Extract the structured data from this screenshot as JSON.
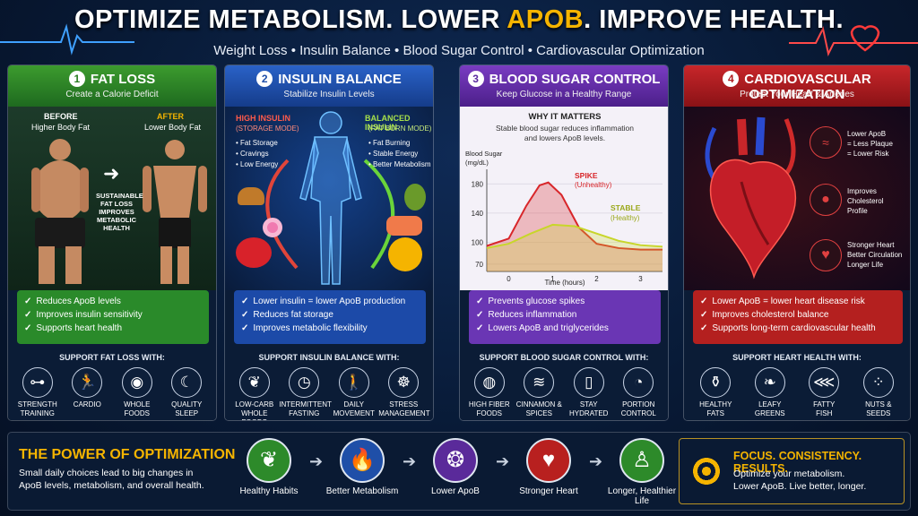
{
  "header": {
    "title_a": "OPTIMIZE METABOLISM. LOWER ",
    "title_hl": "APOB",
    "title_b": ". IMPROVE HEALTH.",
    "subtitle": "Weight Loss • Insulin Balance • Blood Sugar Control • Cardiovascular Optimization"
  },
  "colors": {
    "gold": "#f5b400",
    "green": "#2a8a2a",
    "blue": "#1c4aa8",
    "purple": "#6a36b4",
    "red": "#b4201f"
  },
  "panel1": {
    "num": "1",
    "title": "FAT LOSS",
    "subtitle": "Create a Calorie Deficit",
    "before": "BEFORE",
    "before_sub": "Higher Body Fat",
    "after": "AFTER",
    "after_sub": "Lower Body Fat",
    "middle": [
      "SUSTAINABLE",
      "FAT LOSS",
      "IMPROVES",
      "METABOLIC",
      "HEALTH"
    ],
    "checks": [
      "Reduces ApoB levels",
      "Improves insulin sensitivity",
      "Supports heart health"
    ],
    "support_title": "SUPPORT FAT LOSS WITH:",
    "icons": [
      {
        "name": "dumbbell-icon",
        "glyph": "⊶",
        "label": [
          "STRENGTH",
          "TRAINING"
        ]
      },
      {
        "name": "running-icon",
        "glyph": "🏃",
        "label": [
          "CARDIO",
          ""
        ]
      },
      {
        "name": "plate-icon",
        "glyph": "◉",
        "label": [
          "WHOLE",
          "FOODS"
        ]
      },
      {
        "name": "moon-icon",
        "glyph": "☾",
        "label": [
          "QUALITY",
          "SLEEP"
        ]
      }
    ]
  },
  "panel2": {
    "num": "2",
    "title": "INSULIN BALANCE",
    "subtitle": "Stabilize Insulin Levels",
    "high": "HIGH INSULIN",
    "high_mode": "(STORAGE MODE)",
    "high_items": [
      "• Fat Storage",
      "• Cravings",
      "• Low Energy"
    ],
    "bal": "BALANCED INSULIN",
    "bal_mode": "(FAT BURN MODE)",
    "bal_items": [
      "• Fat Burning",
      "• Stable Energy",
      "• Better Metabolism"
    ],
    "checks": [
      "Lower insulin = lower ApoB production",
      "Reduces fat storage",
      "Improves metabolic flexibility"
    ],
    "support_title": "SUPPORT INSULIN BALANCE WITH:",
    "icons": [
      {
        "name": "leaf-icon",
        "glyph": "❦",
        "label": [
          "LOW-CARB",
          "WHOLE FOODS"
        ]
      },
      {
        "name": "clock-icon",
        "glyph": "◷",
        "label": [
          "INTERMITTENT",
          "FASTING"
        ]
      },
      {
        "name": "walking-icon",
        "glyph": "🚶",
        "label": [
          "DAILY",
          "MOVEMENT"
        ]
      },
      {
        "name": "meditation-icon",
        "glyph": "☸",
        "label": [
          "STRESS",
          "MANAGEMENT"
        ]
      }
    ]
  },
  "panel3": {
    "num": "3",
    "title": "BLOOD SUGAR CONTROL",
    "subtitle": "Keep Glucose in a Healthy Range",
    "why": "WHY IT MATTERS",
    "why_text": [
      "Stable blood sugar reduces inflammation",
      "and lowers ApoB levels."
    ],
    "ylabel": [
      "Blood Sugar",
      "(mg/dL)"
    ],
    "spike": "SPIKE",
    "spike_sub": "(Unhealthy)",
    "stable": "STABLE",
    "stable_sub": "(Healthy)",
    "xlabel": "Time (hours)",
    "checks": [
      "Prevents glucose spikes",
      "Reduces inflammation",
      "Lowers ApoB and triglycerides"
    ],
    "support_title": "SUPPORT BLOOD SUGAR CONTROL WITH:",
    "icons": [
      {
        "name": "bowl-icon",
        "glyph": "◍",
        "label": [
          "HIGH FIBER",
          "FOODS"
        ]
      },
      {
        "name": "cinnamon-icon",
        "glyph": "≋",
        "label": [
          "CINNAMON &",
          "SPICES"
        ]
      },
      {
        "name": "water-glass-icon",
        "glyph": "▯",
        "label": [
          "STAY",
          "HYDRATED"
        ]
      },
      {
        "name": "portion-icon",
        "glyph": "◔",
        "label": [
          "PORTION",
          "CONTROL"
        ]
      }
    ]
  },
  "chart_data": {
    "type": "line",
    "title": "",
    "xlabel": "Time (hours)",
    "ylabel": "Blood Sugar (mg/dL)",
    "xlim": [
      -0.5,
      3.5
    ],
    "ylim": [
      60,
      200
    ],
    "x_ticks": [
      0,
      1,
      2,
      3
    ],
    "y_ticks": [
      70,
      100,
      140,
      180
    ],
    "series": [
      {
        "name": "SPIKE",
        "color": "#d8262a",
        "x": [
          -0.5,
          0,
          0.4,
          0.7,
          0.9,
          1.2,
          1.6,
          2.0,
          2.5,
          3.0,
          3.5
        ],
        "y": [
          95,
          105,
          150,
          178,
          182,
          165,
          120,
          98,
          92,
          90,
          90
        ]
      },
      {
        "name": "STABLE",
        "color": "#c8d62a",
        "x": [
          -0.5,
          0,
          0.5,
          1.0,
          1.5,
          2.0,
          2.5,
          3.0,
          3.5
        ],
        "y": [
          92,
          98,
          112,
          124,
          122,
          112,
          102,
          96,
          94
        ]
      }
    ]
  },
  "panel4": {
    "num": "4",
    "title": "CARDIOVASCULAR OPTIMIZATION",
    "subtitle": "Protect Your Heart & Arteries",
    "side": [
      [
        "Lower ApoB",
        "= Less Plaque",
        "= Lower Risk"
      ],
      [
        "Improves",
        "Cholesterol",
        "Profile"
      ],
      [
        "Stronger Heart",
        "Better Circulation",
        "Longer Life"
      ]
    ],
    "checks": [
      "Lower ApoB = lower heart disease risk",
      "Improves cholesterol balance",
      "Supports long-term cardiovascular health"
    ],
    "support_title": "SUPPORT HEART HEALTH WITH:",
    "icons": [
      {
        "name": "olive-oil-icon",
        "glyph": "⚱",
        "label": [
          "HEALTHY",
          "FATS"
        ]
      },
      {
        "name": "greens-icon",
        "glyph": "❧",
        "label": [
          "LEAFY",
          "GREENS"
        ]
      },
      {
        "name": "fish-icon",
        "glyph": "⋘",
        "label": [
          "FATTY",
          "FISH"
        ]
      },
      {
        "name": "nuts-icon",
        "glyph": "⁘",
        "label": [
          "NUTS &",
          "SEEDS"
        ]
      }
    ]
  },
  "bottom": {
    "title": "THE POWER OF OPTIMIZATION",
    "text": [
      "Small daily choices lead to big changes in",
      "ApoB levels, metabolism, and overall health."
    ],
    "steps": [
      {
        "name": "healthy-habits",
        "icon": "leaf-icon",
        "glyph": "❦",
        "color": "#2d8a2a",
        "label": "Healthy Habits"
      },
      {
        "name": "better-metabolism",
        "icon": "flame-icon",
        "glyph": "🔥",
        "color": "#1f4fa8",
        "label": "Better Metabolism"
      },
      {
        "name": "lower-apob",
        "icon": "molecule-icon",
        "glyph": "❂",
        "color": "#5a2a9a",
        "label": "Lower ApoB"
      },
      {
        "name": "stronger-heart",
        "icon": "heart-icon",
        "glyph": "♥",
        "color": "#b8201f",
        "label": "Stronger Heart"
      },
      {
        "name": "longer-life",
        "icon": "person-icon",
        "glyph": "♙",
        "color": "#2d8a2a",
        "label": "Longer, Healthier Life"
      }
    ],
    "focus_title": "FOCUS. CONSISTENCY. RESULTS.",
    "focus_text": [
      "Optimize your metabolism.",
      "Lower ApoB. Live better, longer."
    ]
  }
}
